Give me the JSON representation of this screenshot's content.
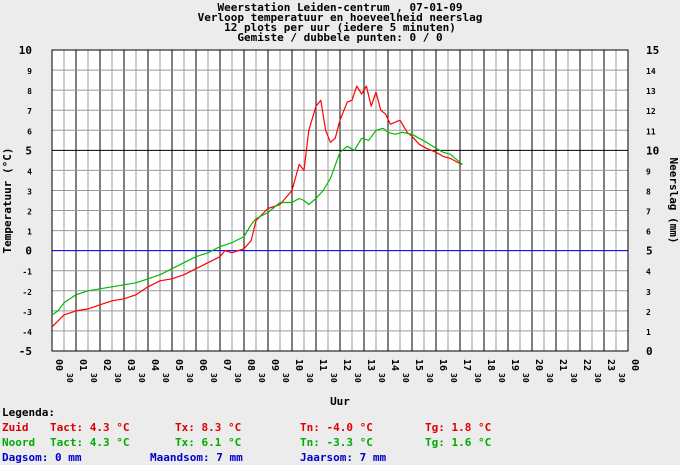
{
  "chart_data": {
    "type": "line",
    "title_lines": [
      "Weerstation Leiden-centrum , 07-01-09",
      "Verloop temperatuur en hoeveelheid neerslag",
      "12 plots per uur (iedere 5 minuten)",
      "Gemiste / dubbele punten: 0 / 0"
    ],
    "xlabel": "Uur",
    "ylabel_left": "Temperatuur (°C)",
    "ylabel_right": "Neerslag (mm)",
    "xlim": [
      0,
      24
    ],
    "ylim": [
      -5,
      10
    ],
    "ylim_right": [
      0,
      15
    ],
    "hour_labels": [
      "00",
      "01",
      "02",
      "03",
      "04",
      "05",
      "06",
      "07",
      "08",
      "09",
      "10",
      "11",
      "12",
      "13",
      "14",
      "15",
      "16",
      "17",
      "18",
      "19",
      "20",
      "21",
      "22",
      "23",
      "00"
    ],
    "half_label": "30",
    "yticks_left": [
      "10",
      "9",
      "8",
      "7",
      "6",
      "5",
      "4",
      "3",
      "2",
      "1",
      "0",
      "-1",
      "-2",
      "-3",
      "-4",
      "-5"
    ],
    "yticks_right": [
      "15",
      "14",
      "13",
      "12",
      "11",
      "10",
      "9",
      "8",
      "7",
      "6",
      "5",
      "4",
      "3",
      "2",
      "1",
      "0"
    ],
    "series": [
      {
        "name": "Zuid",
        "color": "#ff0000",
        "x": [
          0,
          0.25,
          0.5,
          1,
          1.5,
          2,
          2.5,
          3,
          3.5,
          4,
          4.5,
          5,
          5.5,
          6,
          6.5,
          7,
          7.2,
          7.5,
          8,
          8.3,
          8.5,
          9,
          9.5,
          10,
          10.3,
          10.5,
          10.7,
          11,
          11.2,
          11.4,
          11.6,
          11.8,
          12,
          12.3,
          12.5,
          12.7,
          12.9,
          13.1,
          13.3,
          13.5,
          13.7,
          13.9,
          14.1,
          14.3,
          14.5,
          14.8,
          15,
          15.3,
          15.6,
          16,
          16.3,
          16.6,
          16.9,
          17.1
        ],
        "y": [
          -3.8,
          -3.5,
          -3.2,
          -3.0,
          -2.9,
          -2.7,
          -2.5,
          -2.4,
          -2.2,
          -1.8,
          -1.5,
          -1.4,
          -1.2,
          -0.9,
          -0.6,
          -0.3,
          0.0,
          -0.1,
          0.1,
          0.5,
          1.5,
          2.1,
          2.3,
          3.0,
          4.3,
          4.0,
          6.0,
          7.2,
          7.5,
          6.0,
          5.4,
          5.6,
          6.5,
          7.4,
          7.5,
          8.2,
          7.8,
          8.2,
          7.2,
          7.9,
          7.0,
          6.8,
          6.3,
          6.4,
          6.5,
          5.9,
          5.7,
          5.3,
          5.1,
          4.9,
          4.7,
          4.6,
          4.4,
          4.3
        ]
      },
      {
        "name": "Noord",
        "color": "#00bb00",
        "x": [
          0,
          0.25,
          0.5,
          1,
          1.5,
          2,
          2.5,
          3,
          3.5,
          4,
          4.5,
          5,
          5.5,
          6,
          6.5,
          7,
          7.5,
          8,
          8.3,
          8.5,
          9,
          9.5,
          10,
          10.3,
          10.5,
          10.7,
          11,
          11.3,
          11.6,
          12,
          12.3,
          12.6,
          12.9,
          13.2,
          13.5,
          13.8,
          14,
          14.3,
          14.6,
          15,
          15.3,
          15.6,
          16,
          16.3,
          16.6,
          16.9,
          17.1
        ],
        "y": [
          -3.2,
          -3.0,
          -2.6,
          -2.2,
          -2.0,
          -1.9,
          -1.8,
          -1.7,
          -1.6,
          -1.4,
          -1.2,
          -0.9,
          -0.6,
          -0.3,
          -0.1,
          0.2,
          0.4,
          0.7,
          1.3,
          1.6,
          1.9,
          2.4,
          2.4,
          2.6,
          2.5,
          2.3,
          2.6,
          3.0,
          3.6,
          4.9,
          5.2,
          5.0,
          5.6,
          5.5,
          6.0,
          6.1,
          5.9,
          5.8,
          5.9,
          5.8,
          5.6,
          5.4,
          5.1,
          4.9,
          4.8,
          4.5,
          4.3
        ]
      }
    ],
    "zero_line": true
  },
  "legend": {
    "title": "Legenda:",
    "rows": [
      {
        "label": "Zuid",
        "tact": "Tact: 4.3 °C",
        "tx": "Tx: 8.3 °C",
        "tn": "Tn: -4.0 °C",
        "tg": "Tg: 1.8 °C",
        "color": "#dd0000"
      },
      {
        "label": "Noord",
        "tact": "Tact: 4.3 °C",
        "tx": "Tx: 6.1 °C",
        "tn": "Tn: -3.3 °C",
        "tg": "Tg: 1.6 °C",
        "color": "#00aa00"
      }
    ],
    "rain": {
      "dag": "Dagsom: 0 mm",
      "maand": "Maandsom: 7 mm",
      "jaar": "Jaarsom: 7 mm",
      "color": "#0000cc"
    }
  }
}
